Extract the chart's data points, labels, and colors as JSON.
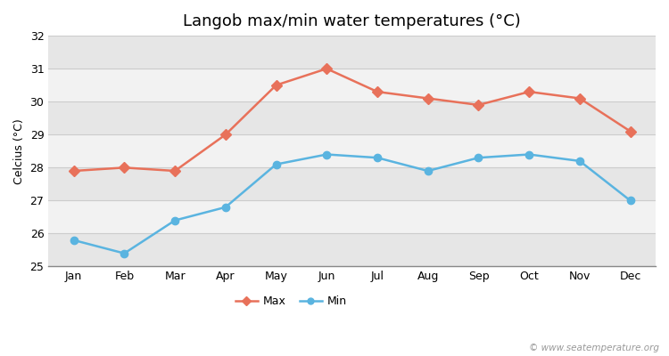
{
  "title": "Langob max/min water temperatures (°C)",
  "ylabel": "Celcius (°C)",
  "months": [
    "Jan",
    "Feb",
    "Mar",
    "Apr",
    "May",
    "Jun",
    "Jul",
    "Aug",
    "Sep",
    "Oct",
    "Nov",
    "Dec"
  ],
  "max_values": [
    27.9,
    28.0,
    27.9,
    29.0,
    30.5,
    31.0,
    30.3,
    30.1,
    29.9,
    30.3,
    30.1,
    29.1
  ],
  "min_values": [
    25.8,
    25.4,
    26.4,
    26.8,
    28.1,
    28.4,
    28.3,
    27.9,
    28.3,
    28.4,
    28.2,
    27.0
  ],
  "max_color": "#e8715a",
  "min_color": "#5ab4e0",
  "fig_bg_color": "#ffffff",
  "band_light": "#f2f2f2",
  "band_dark": "#e6e6e6",
  "grid_line_color": "#cccccc",
  "ylim": [
    25,
    32
  ],
  "yticks": [
    25,
    26,
    27,
    28,
    29,
    30,
    31,
    32
  ],
  "watermark": "© www.seatemperature.org",
  "legend_labels": [
    "Max",
    "Min"
  ],
  "title_fontsize": 13,
  "label_fontsize": 9,
  "tick_fontsize": 9,
  "watermark_fontsize": 7.5
}
